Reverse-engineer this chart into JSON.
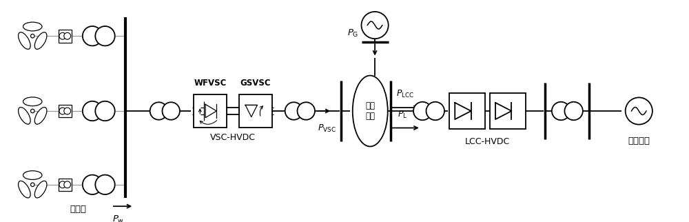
{
  "fig_width": 10.0,
  "fig_height": 3.22,
  "dpi": 100,
  "bg_color": "#ffffff",
  "lc": "#000000",
  "lw": 1.3,
  "tlw": 0.9,
  "gray": "#999999",
  "xlim": [
    0,
    10.0
  ],
  "ylim": [
    0,
    3.22
  ],
  "main_y": 1.61,
  "labels": {
    "feng_dianchang": "风电场",
    "P_w": "$P_{\\mathrm{w}}$",
    "WFVSC": "WFVSC",
    "GSVSC": "GSVSC",
    "VSC_HVDC": "VSC-HVDC",
    "P_VSC": "$P_{\\mathrm{VSC}}$",
    "P_G": "$P_{\\mathrm{G}}$",
    "song_duan_dianwang": "送端\n电网",
    "P_LCC": "$P_{\\mathrm{LCC}}$",
    "P_L": "$P_{\\mathrm{L}}$",
    "LCC_HVDC": "LCC-HVDC",
    "fu_he_zhongxin": "负荷中心"
  }
}
